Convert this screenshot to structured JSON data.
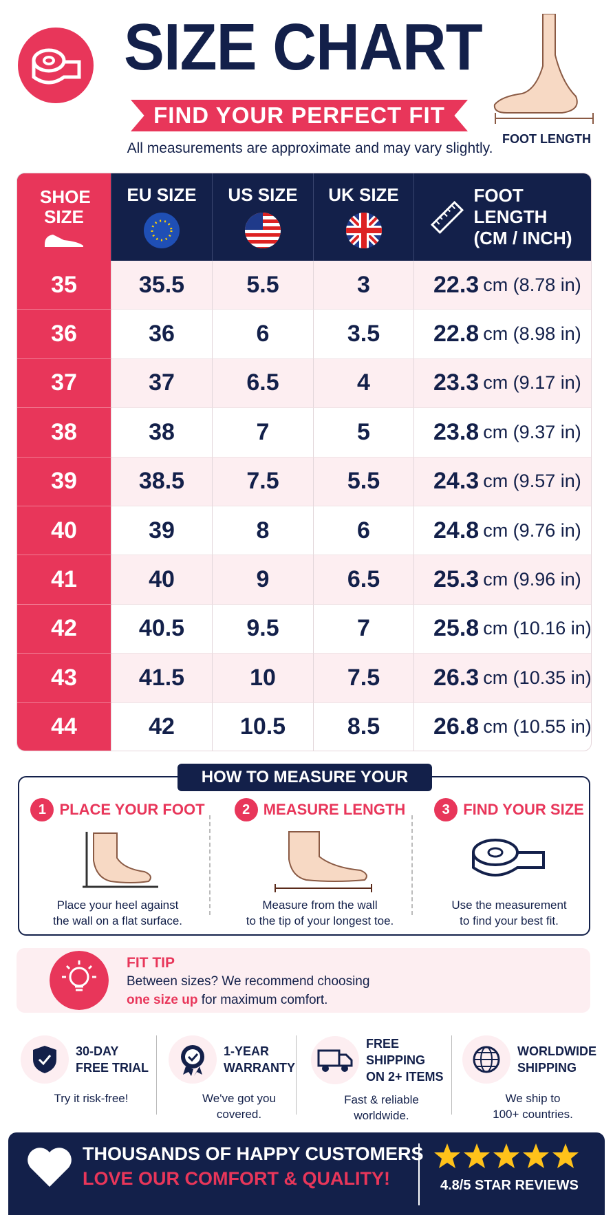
{
  "header": {
    "title": "SIZE CHART",
    "subtitle": "FIND YOUR PERFECT FIT",
    "note": "All measurements are approximate and may vary slightly.",
    "foot_label": "FOOT LENGTH"
  },
  "table": {
    "headers": [
      "SHOE SIZE",
      "EU SIZE",
      "US SIZE",
      "UK SIZE",
      "FOOT LENGTH (CM / INCH)"
    ],
    "rows": [
      [
        "35",
        "35.5",
        "5.5",
        "3",
        "22.3",
        "cm (8.78 in)"
      ],
      [
        "36",
        "36",
        "6",
        "3.5",
        "22.8",
        "cm (8.98 in)"
      ],
      [
        "37",
        "37",
        "6.5",
        "4",
        "23.3",
        "cm (9.17 in)"
      ],
      [
        "38",
        "38",
        "7",
        "5",
        "23.8",
        "cm (9.37 in)"
      ],
      [
        "39",
        "38.5",
        "7.5",
        "5.5",
        "24.3",
        "cm (9.57 in)"
      ],
      [
        "40",
        "39",
        "8",
        "6",
        "24.8",
        "cm (9.76 in)"
      ],
      [
        "41",
        "40",
        "9",
        "6.5",
        "25.3",
        "cm (9.96 in)"
      ],
      [
        "42",
        "40.5",
        "9.5",
        "7",
        "25.8",
        "cm (10.16 in)"
      ],
      [
        "43",
        "41.5",
        "10",
        "7.5",
        "26.3",
        "cm (10.35 in)"
      ],
      [
        "44",
        "42",
        "10.5",
        "8.5",
        "26.8",
        "cm (10.55 in)"
      ]
    ]
  },
  "measure": {
    "title": "HOW TO MEASURE YOUR FOOT",
    "steps": [
      {
        "number": "1",
        "title": "PLACE YOUR FOOT",
        "text": [
          "Place your heel against",
          "the wall on a flat surface."
        ]
      },
      {
        "number": "2",
        "title": "MEASURE LENGTH",
        "text": [
          "Measure from the wall",
          "to the tip of your longest toe."
        ]
      },
      {
        "number": "3",
        "title": "FIND YOUR SIZE",
        "text": [
          "Use the measurement",
          "to find your best fit."
        ]
      }
    ]
  },
  "tip": {
    "title": "FIT TIP",
    "text": "Between sizes? We recommend choosing",
    "highlight": "one size up",
    "rest": "for maximum comfort."
  },
  "features": [
    {
      "title": [
        "30-DAY",
        "FREE TRIAL"
      ],
      "text": [
        "Try it risk-free!"
      ]
    },
    {
      "title": [
        "1-YEAR",
        "WARRANTY"
      ],
      "text": [
        "We've got you",
        "covered."
      ]
    },
    {
      "title": [
        "FREE SHIPPING",
        "ON 2+ ITEMS"
      ],
      "text": [
        "Fast & reliable",
        "worldwide."
      ]
    },
    {
      "title": [
        "WORLDWIDE",
        "SHIPPING"
      ],
      "text": [
        "We ship to",
        "100+ countries."
      ]
    }
  ],
  "footer": {
    "line1": "THOUSANDS OF HAPPY CUSTOMERS",
    "line2": "LOVE OUR COMFORT & QUALITY!",
    "rating": "4.8/5 STAR REVIEWS"
  }
}
